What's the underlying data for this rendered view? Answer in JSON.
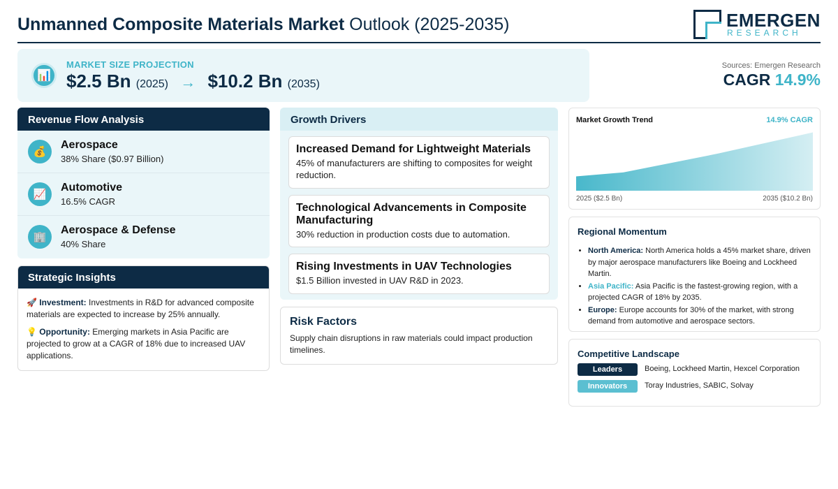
{
  "header": {
    "title_bold": "Unmanned Composite Materials Market",
    "title_rest": "Outlook (2025-2035)",
    "logo_main": "EMERGEN",
    "logo_sub": "RESEARCH"
  },
  "projection": {
    "icon": "bar-chart-icon",
    "label": "MARKET SIZE PROJECTION",
    "start_value": "$2.5 Bn",
    "start_year": "(2025)",
    "arrow": "→",
    "end_value": "$10.2 Bn",
    "end_year": "(2035)"
  },
  "cagr": {
    "source": "Sources: Emergen Research",
    "label": "CAGR",
    "value": "14.9%"
  },
  "revenue": {
    "title": "Revenue Flow Analysis",
    "items": [
      {
        "icon": "money-bag-icon",
        "glyph": "💰",
        "name": "Aerospace",
        "detail": "38% Share ($0.97 Billion)"
      },
      {
        "icon": "trend-chart-icon",
        "glyph": "📈",
        "name": "Automotive",
        "detail": "16.5% CAGR"
      },
      {
        "icon": "building-icon",
        "glyph": "🏢",
        "name": "Aerospace & Defense",
        "detail": "40% Share"
      }
    ]
  },
  "strategic": {
    "title": "Strategic Insights",
    "items": [
      {
        "icon": "rocket-icon",
        "glyph": "🚀",
        "label": "Investment:",
        "text": "Investments in R&D for advanced composite materials are expected to increase by 25% annually."
      },
      {
        "icon": "lightbulb-icon",
        "glyph": "💡",
        "label": "Opportunity:",
        "text": "Emerging markets in Asia Pacific are projected to grow at a CAGR of 18% due to increased UAV applications."
      }
    ]
  },
  "drivers": {
    "title": "Growth Drivers",
    "items": [
      {
        "title": "Increased Demand for Lightweight Materials",
        "desc": "45% of manufacturers are shifting to composites for weight reduction."
      },
      {
        "title": "Technological Advancements in Composite Manufacturing",
        "desc": "30% reduction in production costs due to automation."
      },
      {
        "title": "Rising Investments in UAV Technologies",
        "desc": "$1.5 Billion invested in UAV R&D in 2023."
      }
    ]
  },
  "risk": {
    "title": "Risk Factors",
    "desc": "Supply chain disruptions in raw materials could impact production timelines."
  },
  "trend": {
    "title": "Market Growth Trend",
    "cagr": "14.9% CAGR",
    "start_label": "2025 ($2.5 Bn)",
    "end_label": "2035 ($10.2 Bn)"
  },
  "chart_data": {
    "type": "area",
    "x": [
      2025,
      2027,
      2031,
      2035
    ],
    "values": [
      2.5,
      3.2,
      6.5,
      10.2
    ],
    "ylim": [
      0,
      11
    ],
    "xlabel": "",
    "ylabel": "",
    "grid": false,
    "color": "#3fb4c8"
  },
  "region": {
    "title": "Regional Momentum",
    "items": [
      {
        "label": "North America:",
        "style": "dark",
        "text": "North America holds a 45% market share, driven by major aerospace manufacturers like Boeing and Lockheed Martin."
      },
      {
        "label": "Asia Pacific:",
        "style": "teal",
        "text": "Asia Pacific is the fastest-growing region, with a projected CAGR of 18% by 2035."
      },
      {
        "label": "Europe:",
        "style": "dark",
        "text": "Europe accounts for 30% of the market, with strong demand from automotive and aerospace sectors."
      }
    ]
  },
  "competitive": {
    "title": "Competitive Landscape",
    "rows": [
      {
        "badge": "Leaders",
        "style": "dark",
        "names": "Boeing, Lockheed Martin, Hexcel Corporation"
      },
      {
        "badge": "Innovators",
        "style": "teal",
        "names": "Toray Industries, SABIC, Solvay"
      }
    ]
  },
  "colors": {
    "navy": "#0d2b45",
    "teal": "#3fb4c8",
    "panel_bg": "#eaf6f9"
  }
}
